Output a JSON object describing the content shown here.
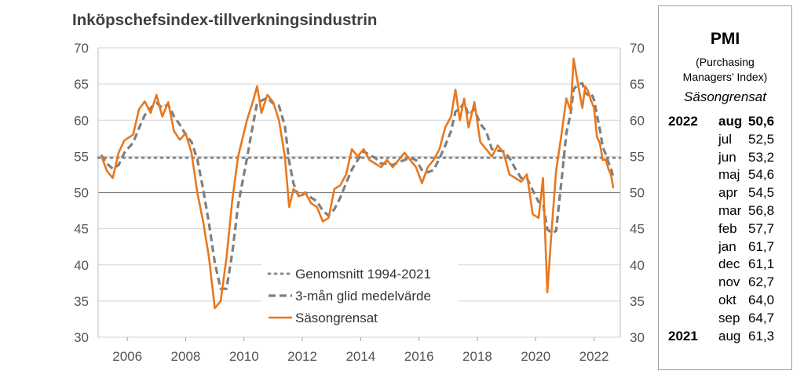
{
  "chart_data": {
    "type": "line",
    "title": "Inköpschefsindex-tillverkningsindustrin",
    "ylim": [
      30,
      70
    ],
    "yticks": [
      30,
      35,
      40,
      45,
      50,
      55,
      60,
      65,
      70
    ],
    "xlim": [
      2005.0,
      2022.9
    ],
    "xticks": [
      2006,
      2008,
      2010,
      2012,
      2014,
      2016,
      2018,
      2020,
      2022
    ],
    "reference_line": 50,
    "legend": {
      "position": "bottom-center",
      "items": [
        {
          "label": "Genomsnitt 1994-2021",
          "style": "dotted",
          "color": "#8c8c8c"
        },
        {
          "label": "3-mån glid medelvärde",
          "style": "dashed",
          "color": "#7f7f7f"
        },
        {
          "label": "Säsongrensat",
          "style": "solid",
          "color": "#e8781e"
        }
      ]
    },
    "series": [
      {
        "name": "Genomsnitt 1994-2021",
        "value": 54.8
      },
      {
        "name": "Säsongrensat",
        "points": [
          [
            2005.1,
            55.2
          ],
          [
            2005.3,
            53.0
          ],
          [
            2005.5,
            52.0
          ],
          [
            2005.7,
            55.5
          ],
          [
            2005.9,
            57.2
          ],
          [
            2006.2,
            58.0
          ],
          [
            2006.4,
            61.5
          ],
          [
            2006.6,
            62.6
          ],
          [
            2006.8,
            61.0
          ],
          [
            2007.0,
            63.5
          ],
          [
            2007.2,
            60.5
          ],
          [
            2007.4,
            62.5
          ],
          [
            2007.6,
            58.5
          ],
          [
            2007.8,
            57.3
          ],
          [
            2008.0,
            58.2
          ],
          [
            2008.2,
            55.5
          ],
          [
            2008.4,
            50.0
          ],
          [
            2008.6,
            46.0
          ],
          [
            2008.8,
            41.0
          ],
          [
            2009.0,
            34.0
          ],
          [
            2009.2,
            35.0
          ],
          [
            2009.4,
            41.0
          ],
          [
            2009.6,
            49.0
          ],
          [
            2009.8,
            55.0
          ],
          [
            2010.1,
            60.0
          ],
          [
            2010.3,
            62.5
          ],
          [
            2010.45,
            64.7
          ],
          [
            2010.6,
            61.0
          ],
          [
            2010.8,
            63.5
          ],
          [
            2011.0,
            62.5
          ],
          [
            2011.2,
            60.0
          ],
          [
            2011.4,
            55.0
          ],
          [
            2011.55,
            48.0
          ],
          [
            2011.7,
            50.5
          ],
          [
            2011.9,
            49.5
          ],
          [
            2012.1,
            50.0
          ],
          [
            2012.3,
            48.5
          ],
          [
            2012.5,
            48.0
          ],
          [
            2012.7,
            46.0
          ],
          [
            2012.9,
            46.5
          ],
          [
            2013.1,
            50.5
          ],
          [
            2013.3,
            51.0
          ],
          [
            2013.5,
            52.5
          ],
          [
            2013.7,
            56.0
          ],
          [
            2013.9,
            55.0
          ],
          [
            2014.1,
            56.0
          ],
          [
            2014.3,
            54.5
          ],
          [
            2014.5,
            54.0
          ],
          [
            2014.7,
            53.5
          ],
          [
            2014.9,
            54.5
          ],
          [
            2015.1,
            53.5
          ],
          [
            2015.3,
            54.5
          ],
          [
            2015.5,
            55.5
          ],
          [
            2015.7,
            54.5
          ],
          [
            2015.9,
            53.5
          ],
          [
            2016.1,
            51.3
          ],
          [
            2016.3,
            53.5
          ],
          [
            2016.5,
            54.5
          ],
          [
            2016.7,
            56.0
          ],
          [
            2016.9,
            59.0
          ],
          [
            2017.1,
            60.5
          ],
          [
            2017.25,
            64.2
          ],
          [
            2017.4,
            60.0
          ],
          [
            2017.55,
            63.0
          ],
          [
            2017.7,
            59.0
          ],
          [
            2017.9,
            62.5
          ],
          [
            2018.1,
            57.0
          ],
          [
            2018.3,
            56.0
          ],
          [
            2018.5,
            55.0
          ],
          [
            2018.7,
            56.5
          ],
          [
            2018.9,
            55.5
          ],
          [
            2019.1,
            52.5
          ],
          [
            2019.3,
            52.0
          ],
          [
            2019.5,
            51.5
          ],
          [
            2019.7,
            52.5
          ],
          [
            2019.9,
            47.0
          ],
          [
            2020.1,
            46.5
          ],
          [
            2020.25,
            52.0
          ],
          [
            2020.4,
            36.2
          ],
          [
            2020.55,
            45.0
          ],
          [
            2020.7,
            53.0
          ],
          [
            2020.9,
            58.5
          ],
          [
            2021.05,
            63.0
          ],
          [
            2021.2,
            61.3
          ],
          [
            2021.3,
            68.5
          ],
          [
            2021.45,
            65.0
          ],
          [
            2021.6,
            61.7
          ],
          [
            2021.7,
            64.7
          ],
          [
            2021.8,
            64.0
          ],
          [
            2021.9,
            62.7
          ],
          [
            2022.0,
            61.7
          ],
          [
            2022.1,
            57.7
          ],
          [
            2022.2,
            56.8
          ],
          [
            2022.3,
            54.5
          ],
          [
            2022.4,
            54.6
          ],
          [
            2022.5,
            53.2
          ],
          [
            2022.58,
            52.5
          ],
          [
            2022.66,
            50.6
          ]
        ]
      },
      {
        "name": "3-mån glid medelvärde",
        "points": [
          [
            2005.1,
            55.2
          ],
          [
            2005.3,
            54.0
          ],
          [
            2005.5,
            53.3
          ],
          [
            2005.7,
            53.8
          ],
          [
            2005.9,
            55.5
          ],
          [
            2006.2,
            56.9
          ],
          [
            2006.4,
            58.9
          ],
          [
            2006.6,
            60.7
          ],
          [
            2006.8,
            61.7
          ],
          [
            2007.0,
            62.4
          ],
          [
            2007.2,
            61.7
          ],
          [
            2007.4,
            62.2
          ],
          [
            2007.6,
            60.5
          ],
          [
            2007.8,
            59.4
          ],
          [
            2008.0,
            58.0
          ],
          [
            2008.2,
            57.0
          ],
          [
            2008.4,
            54.6
          ],
          [
            2008.6,
            50.5
          ],
          [
            2008.8,
            45.7
          ],
          [
            2009.0,
            40.3
          ],
          [
            2009.2,
            36.7
          ],
          [
            2009.4,
            36.7
          ],
          [
            2009.6,
            41.7
          ],
          [
            2009.8,
            48.3
          ],
          [
            2010.1,
            54.7
          ],
          [
            2010.3,
            59.2
          ],
          [
            2010.45,
            62.4
          ],
          [
            2010.6,
            62.7
          ],
          [
            2010.8,
            63.1
          ],
          [
            2011.0,
            62.3
          ],
          [
            2011.2,
            62.0
          ],
          [
            2011.4,
            59.2
          ],
          [
            2011.55,
            54.3
          ],
          [
            2011.7,
            51.2
          ],
          [
            2011.9,
            49.3
          ],
          [
            2012.1,
            50.0
          ],
          [
            2012.3,
            49.3
          ],
          [
            2012.5,
            48.8
          ],
          [
            2012.7,
            47.5
          ],
          [
            2012.9,
            46.8
          ],
          [
            2013.1,
            47.7
          ],
          [
            2013.3,
            49.3
          ],
          [
            2013.5,
            51.3
          ],
          [
            2013.7,
            53.2
          ],
          [
            2013.9,
            54.5
          ],
          [
            2014.1,
            55.7
          ],
          [
            2014.3,
            55.2
          ],
          [
            2014.5,
            54.8
          ],
          [
            2014.7,
            54.0
          ],
          [
            2014.9,
            54.0
          ],
          [
            2015.1,
            53.8
          ],
          [
            2015.3,
            54.2
          ],
          [
            2015.5,
            54.5
          ],
          [
            2015.7,
            54.8
          ],
          [
            2015.9,
            54.5
          ],
          [
            2016.1,
            53.1
          ],
          [
            2016.3,
            52.8
          ],
          [
            2016.5,
            53.1
          ],
          [
            2016.7,
            54.7
          ],
          [
            2016.9,
            56.5
          ],
          [
            2017.1,
            58.5
          ],
          [
            2017.25,
            61.2
          ],
          [
            2017.4,
            61.6
          ],
          [
            2017.55,
            62.4
          ],
          [
            2017.7,
            60.7
          ],
          [
            2017.9,
            61.5
          ],
          [
            2018.1,
            59.5
          ],
          [
            2018.3,
            58.5
          ],
          [
            2018.5,
            56.0
          ],
          [
            2018.7,
            55.8
          ],
          [
            2018.9,
            55.7
          ],
          [
            2019.1,
            54.8
          ],
          [
            2019.3,
            53.3
          ],
          [
            2019.5,
            52.0
          ],
          [
            2019.7,
            52.0
          ],
          [
            2019.9,
            50.3
          ],
          [
            2020.1,
            48.7
          ],
          [
            2020.25,
            48.5
          ],
          [
            2020.4,
            44.9
          ],
          [
            2020.55,
            44.4
          ],
          [
            2020.7,
            44.7
          ],
          [
            2020.9,
            52.2
          ],
          [
            2021.05,
            58.2
          ],
          [
            2021.2,
            60.9
          ],
          [
            2021.3,
            64.3
          ],
          [
            2021.45,
            64.9
          ],
          [
            2021.6,
            65.1
          ],
          [
            2021.7,
            63.8
          ],
          [
            2021.8,
            63.5
          ],
          [
            2021.9,
            63.8
          ],
          [
            2022.0,
            62.8
          ],
          [
            2022.1,
            60.7
          ],
          [
            2022.2,
            58.7
          ],
          [
            2022.3,
            56.3
          ],
          [
            2022.4,
            55.3
          ],
          [
            2022.5,
            54.1
          ],
          [
            2022.58,
            53.4
          ],
          [
            2022.66,
            52.1
          ]
        ]
      }
    ]
  },
  "pmi_table": {
    "title": "PMI",
    "subtitle_lines": [
      "(Purchasing",
      "Managers’ Index)"
    ],
    "adjustment": "Säsongrensat",
    "rows": [
      {
        "year": "2022",
        "month": "aug",
        "value": "50,6"
      },
      {
        "year": "",
        "month": "jul",
        "value": "52,5"
      },
      {
        "year": "",
        "month": "jun",
        "value": "53,2"
      },
      {
        "year": "",
        "month": "maj",
        "value": "54,6"
      },
      {
        "year": "",
        "month": "apr",
        "value": "54,5"
      },
      {
        "year": "",
        "month": "mar",
        "value": "56,8"
      },
      {
        "year": "",
        "month": "feb",
        "value": "57,7"
      },
      {
        "year": "",
        "month": "jan",
        "value": "61,7"
      },
      {
        "year": "",
        "month": "dec",
        "value": "61,1"
      },
      {
        "year": "",
        "month": "nov",
        "value": "62,7"
      },
      {
        "year": "",
        "month": "okt",
        "value": "64,0"
      },
      {
        "year": "",
        "month": "sep",
        "value": "64,7"
      },
      {
        "year": "2021",
        "month": "aug",
        "value": "61,3"
      }
    ]
  }
}
